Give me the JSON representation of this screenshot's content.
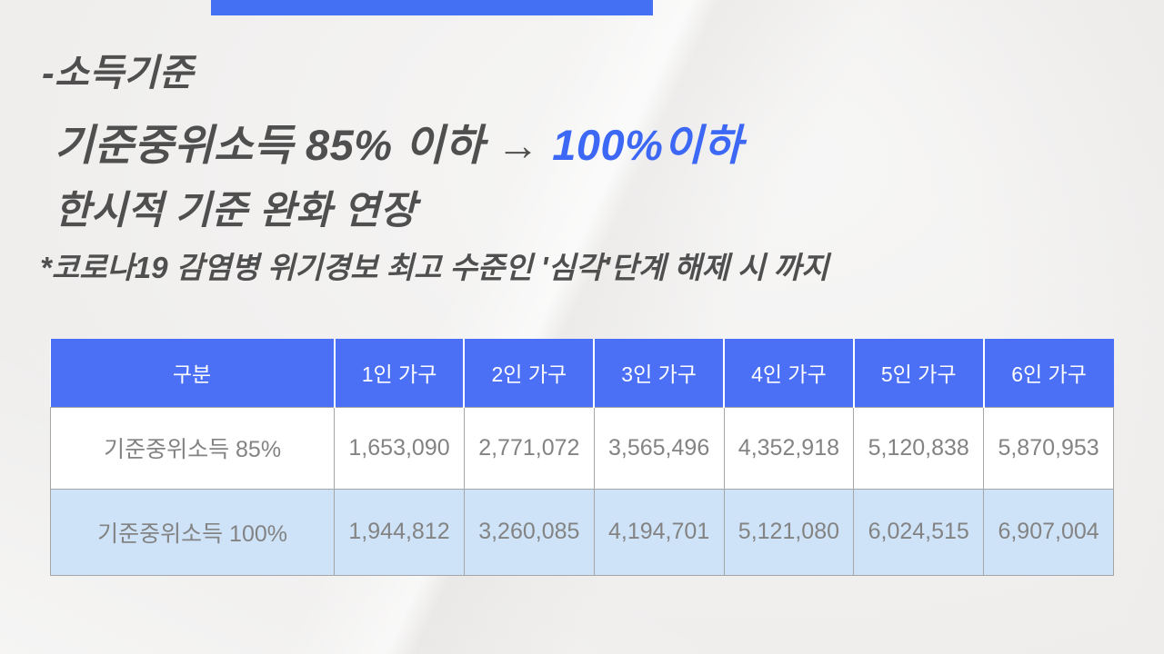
{
  "colors": {
    "accent_blue": "#4470f4",
    "highlight_blue": "#3d68f5",
    "heading_gray": "#4f4f4f",
    "header_row_bg": "#4b70f5",
    "row_100_bg": "#cfe3f8",
    "body_text_gray": "#838383",
    "background": "#f0efee"
  },
  "headings": {
    "line1": "-소득기준",
    "line2_prefix": "기준중위소득 85% 이하 → ",
    "line2_highlight": "100%이하",
    "line3": "한시적 기준 완화 연장",
    "note": "*코로나19 감염병 위기경보 최고 수준인 '심각'단계 해제 시 까지"
  },
  "table": {
    "columns": [
      "구분",
      "1인 가구",
      "2인 가구",
      "3인 가구",
      "4인 가구",
      "5인 가구",
      "6인 가구"
    ],
    "rows": [
      {
        "label": "기준중위소득 85%",
        "values": [
          "1,653,090",
          "2,771,072",
          "3,565,496",
          "4,352,918",
          "5,120,838",
          "5,870,953"
        ]
      },
      {
        "label": "기준중위소득 100%",
        "values": [
          "1,944,812",
          "3,260,085",
          "4,194,701",
          "5,121,080",
          "6,024,515",
          "6,907,004"
        ]
      }
    ]
  }
}
